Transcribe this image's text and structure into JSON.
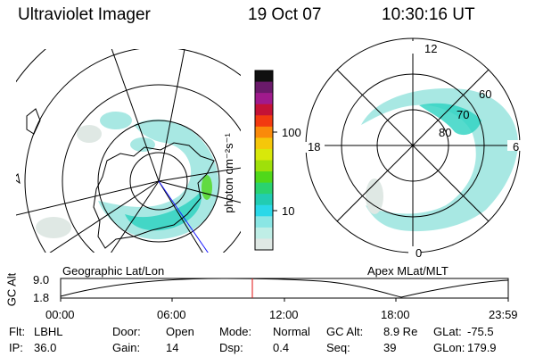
{
  "header": {
    "instrument": "Ultraviolet Imager",
    "date": "19 Oct 07",
    "time": "10:30:16 UT"
  },
  "left_panel": {
    "label": "Geographic Lat/Lon"
  },
  "right_panel": {
    "label": "Apex MLat/MLT",
    "mlt_labels": [
      "12",
      "18",
      "6",
      "0"
    ],
    "mlat_labels": [
      "60",
      "70",
      "80"
    ]
  },
  "colorbar": {
    "unit_label": "photon cm⁻²s⁻¹",
    "ticks": [
      "100",
      "10"
    ],
    "colors": [
      "#101010",
      "#6a1a6a",
      "#a01a8c",
      "#c41236",
      "#f23a10",
      "#fa8a0a",
      "#f5c70a",
      "#d8e80a",
      "#9fe00a",
      "#50d81a",
      "#2ad270",
      "#22ccb2",
      "#2ad8e8",
      "#8ae6e4",
      "#bfeee6",
      "#dfe8e4"
    ]
  },
  "timeline": {
    "axis_label": "GC Alt",
    "y_ticks": [
      "9.0",
      "1.8"
    ],
    "x_ticks": [
      "00:00",
      "06:00",
      "12:00",
      "18:00",
      "23:59"
    ]
  },
  "status": {
    "row1": [
      {
        "label": "Flt:",
        "value": "LBHL"
      },
      {
        "label": "Door:",
        "value": "Open"
      },
      {
        "label": "Mode:",
        "value": "Normal"
      },
      {
        "label": "GC Alt:",
        "value": "8.9 Re"
      },
      {
        "label": "GLat:",
        "value": "-75.5"
      }
    ],
    "row2": [
      {
        "label": "IP:",
        "value": "36.0"
      },
      {
        "label": "Gain:",
        "value": "14"
      },
      {
        "label": "Dsp:",
        "value": "0.4"
      },
      {
        "label": "Seq:",
        "value": "39"
      },
      {
        "label": "GLon:",
        "value": "179.9"
      }
    ]
  }
}
